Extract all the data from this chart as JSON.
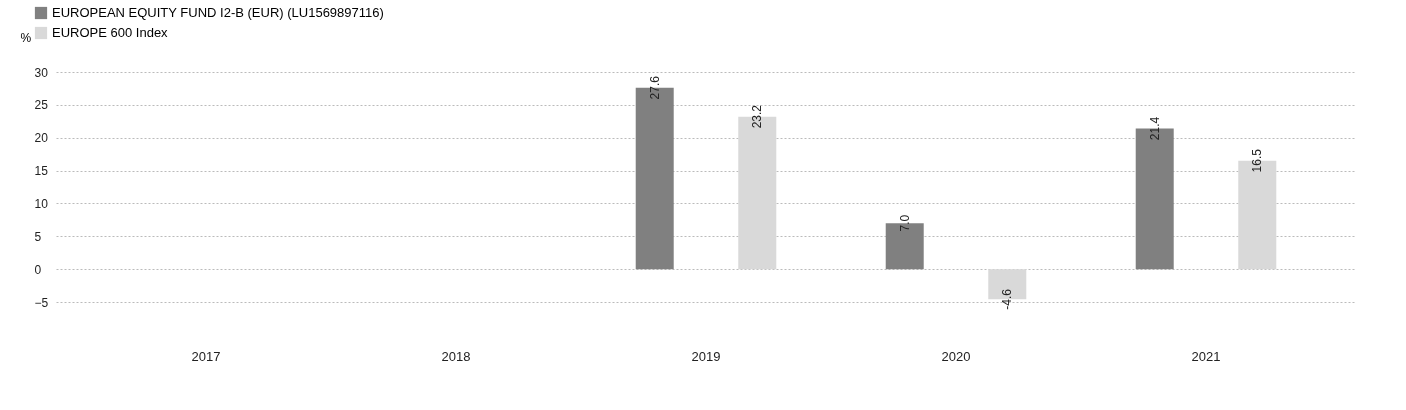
{
  "chart_data": {
    "type": "bar",
    "ylabel": "%",
    "categories": [
      "2017",
      "2018",
      "2019",
      "2020",
      "2021"
    ],
    "series": [
      {
        "name": "EUROPEAN EQUITY FUND I2-B (EUR) (LU1569897116)",
        "color": "#808080",
        "values": [
          null,
          null,
          27.6,
          7.0,
          21.4
        ],
        "value_labels": [
          null,
          null,
          "27.6",
          "7.0",
          "21.4"
        ]
      },
      {
        "name": "EUROPE 600 Index",
        "color": "#d9d9d9",
        "values": [
          null,
          null,
          23.2,
          -4.6,
          16.5
        ],
        "value_labels": [
          null,
          null,
          "23.2",
          "-4.6",
          "16.5"
        ]
      }
    ],
    "ylim": [
      -5,
      30
    ],
    "yticks": [
      -5,
      0,
      5,
      10,
      15,
      20,
      25,
      30
    ],
    "grid": "y",
    "legend": "top left"
  }
}
